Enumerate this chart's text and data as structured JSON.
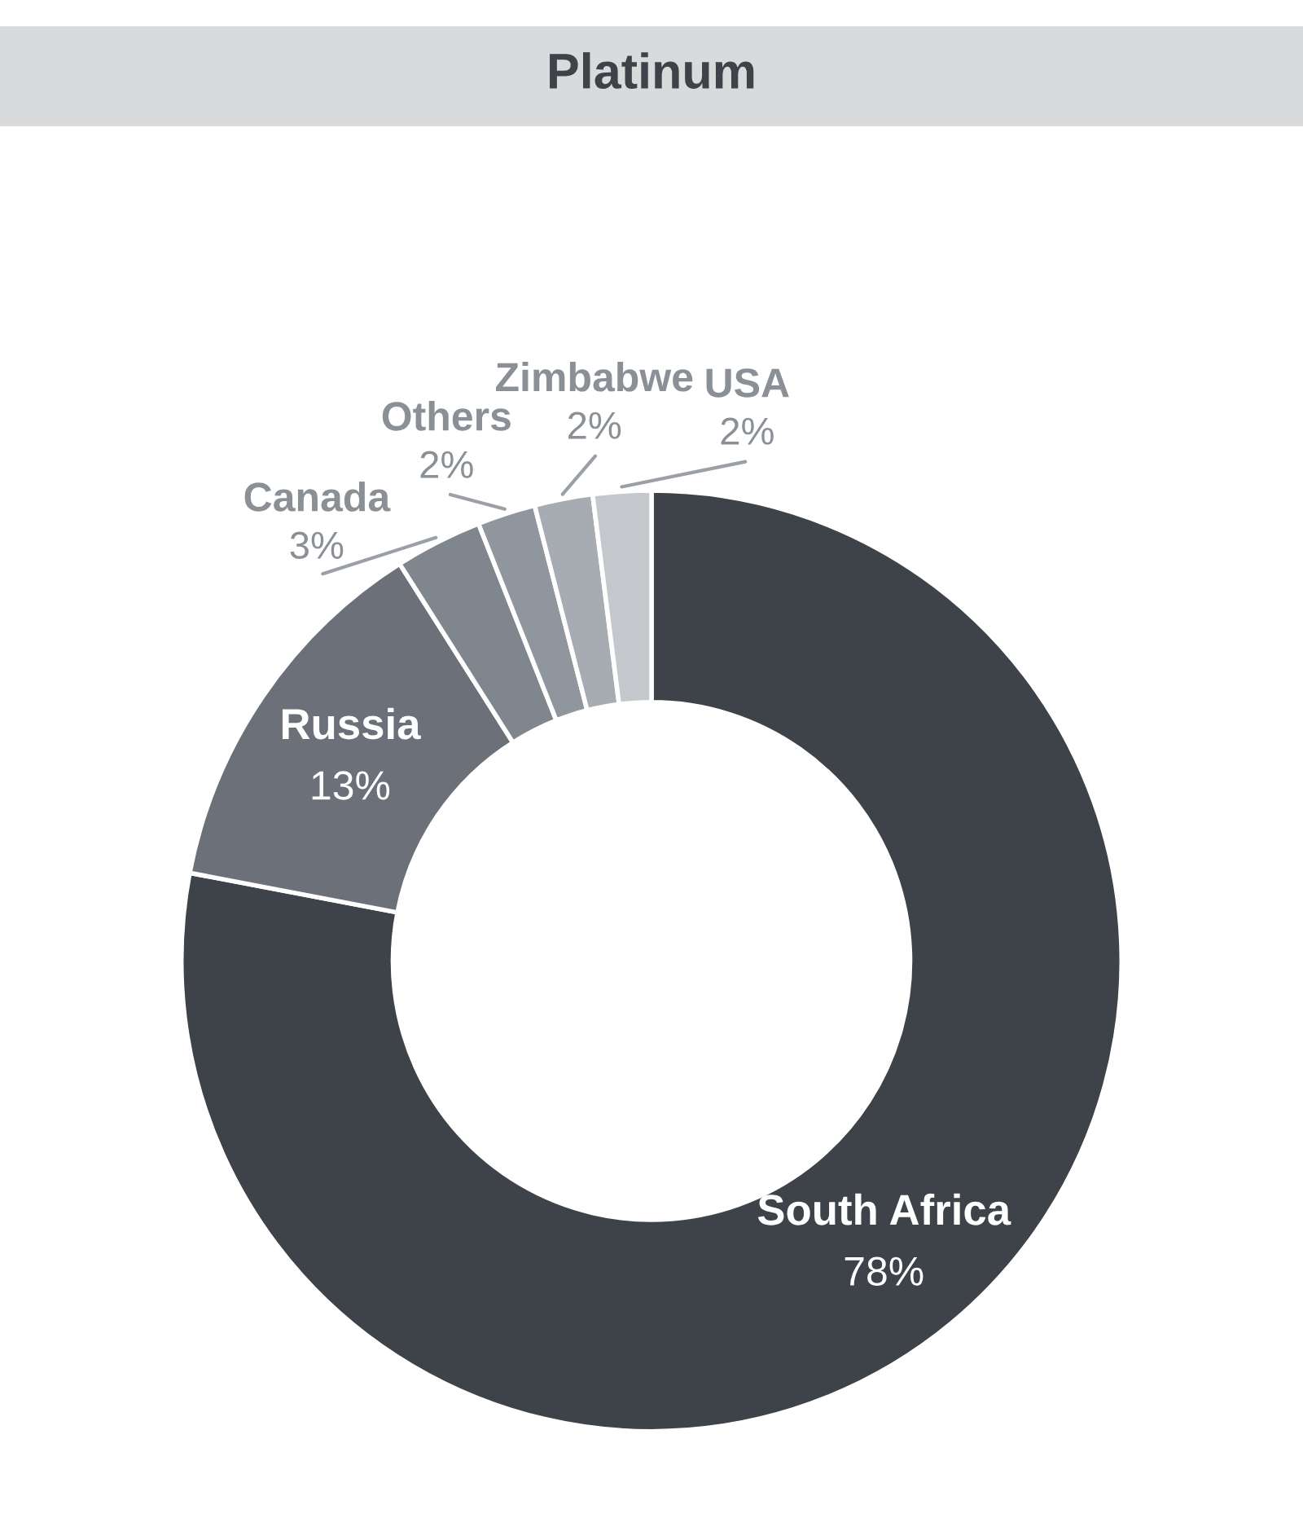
{
  "chart_data": {
    "type": "donut",
    "title": "Platinum",
    "categories": [
      "South Africa",
      "Russia",
      "Canada",
      "Others",
      "Zimbabwe",
      "USA"
    ],
    "values": [
      78,
      13,
      3,
      2,
      2,
      2
    ],
    "value_labels": [
      "78%",
      "13%",
      "3%",
      "2%",
      "2%",
      "2%"
    ],
    "colors": [
      "#3d4349",
      "#6b7079",
      "#80868e",
      "#8f969e",
      "#a6acb2",
      "#c4c8cc"
    ]
  }
}
